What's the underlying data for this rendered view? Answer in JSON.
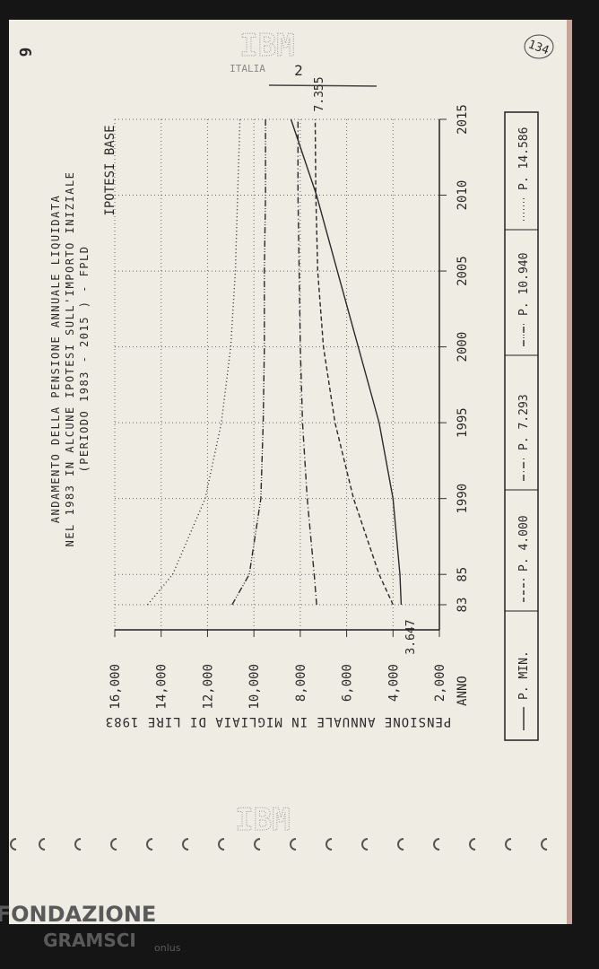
{
  "page": {
    "page_number": "6",
    "archive_number": "134",
    "logo_top": "IBM",
    "logo_top_sub": "ITALIA",
    "sheet_number": "2",
    "logo_bottom": "IBM",
    "watermark": "FONDAZIONE",
    "watermark_2": "GRAMSCI",
    "watermark_3": "onlus"
  },
  "chart_data": {
    "type": "line",
    "title_lines": [
      "ANDAMENTO DELLA PENSIONE ANNUALE LIQUIDATA",
      "NEL 1983 IN ALCUNE IPOTESI SULL'IMPORTO INIZIALE",
      "(PERIODO 1983 - 2015 ) - FPLD"
    ],
    "subtitle": "IPOTESI BASE",
    "ylabel": "PENSIONE ANNUALE IN MIGLIAIA DI LIRE 1983",
    "xlabel": "ANNO",
    "x": [
      1983,
      1985,
      1990,
      1995,
      2000,
      2005,
      2010,
      2015
    ],
    "xlim": [
      1983,
      2015
    ],
    "xticks": [
      {
        "value": 1983,
        "label": "83"
      },
      {
        "value": 1985,
        "label": "85"
      },
      1990,
      1995,
      2000,
      2005,
      2010,
      2015
    ],
    "ylim": [
      2000,
      16000
    ],
    "yticks": [
      {
        "value": 2000,
        "label": "2,000"
      },
      {
        "value": 4000,
        "label": "4,000"
      },
      {
        "value": 6000,
        "label": "6,000"
      },
      {
        "value": 8000,
        "label": "8,000"
      },
      {
        "value": 10000,
        "label": "10,000"
      },
      {
        "value": 12000,
        "label": "12,000"
      },
      {
        "value": 14000,
        "label": "14,000"
      },
      {
        "value": 16000,
        "label": "16,000"
      }
    ],
    "grid": true,
    "series": [
      {
        "name": "P. MIN.",
        "color": "#2a2a2a",
        "values": [
          3647,
          3700,
          4000,
          4600,
          5500,
          6400,
          7300,
          8400
        ]
      },
      {
        "name": "P. 4.000",
        "color": "#2a2a2a",
        "values": [
          4000,
          4600,
          5700,
          6500,
          7000,
          7250,
          7330,
          7355
        ]
      },
      {
        "name": "P. 7.293",
        "color": "#2a2a2a",
        "values": [
          7293,
          7400,
          7700,
          7900,
          8000,
          8050,
          8100,
          8100
        ]
      },
      {
        "name": "P. 10.940",
        "color": "#2a2a2a",
        "values": [
          10940,
          10200,
          9700,
          9600,
          9550,
          9550,
          9500,
          9500
        ]
      },
      {
        "name": "P. 14.586",
        "color": "#2a2a2a",
        "values": [
          14586,
          13500,
          12100,
          11400,
          11000,
          10800,
          10700,
          10600
        ]
      }
    ],
    "annotations": [
      "7.355",
      "3.647"
    ]
  }
}
